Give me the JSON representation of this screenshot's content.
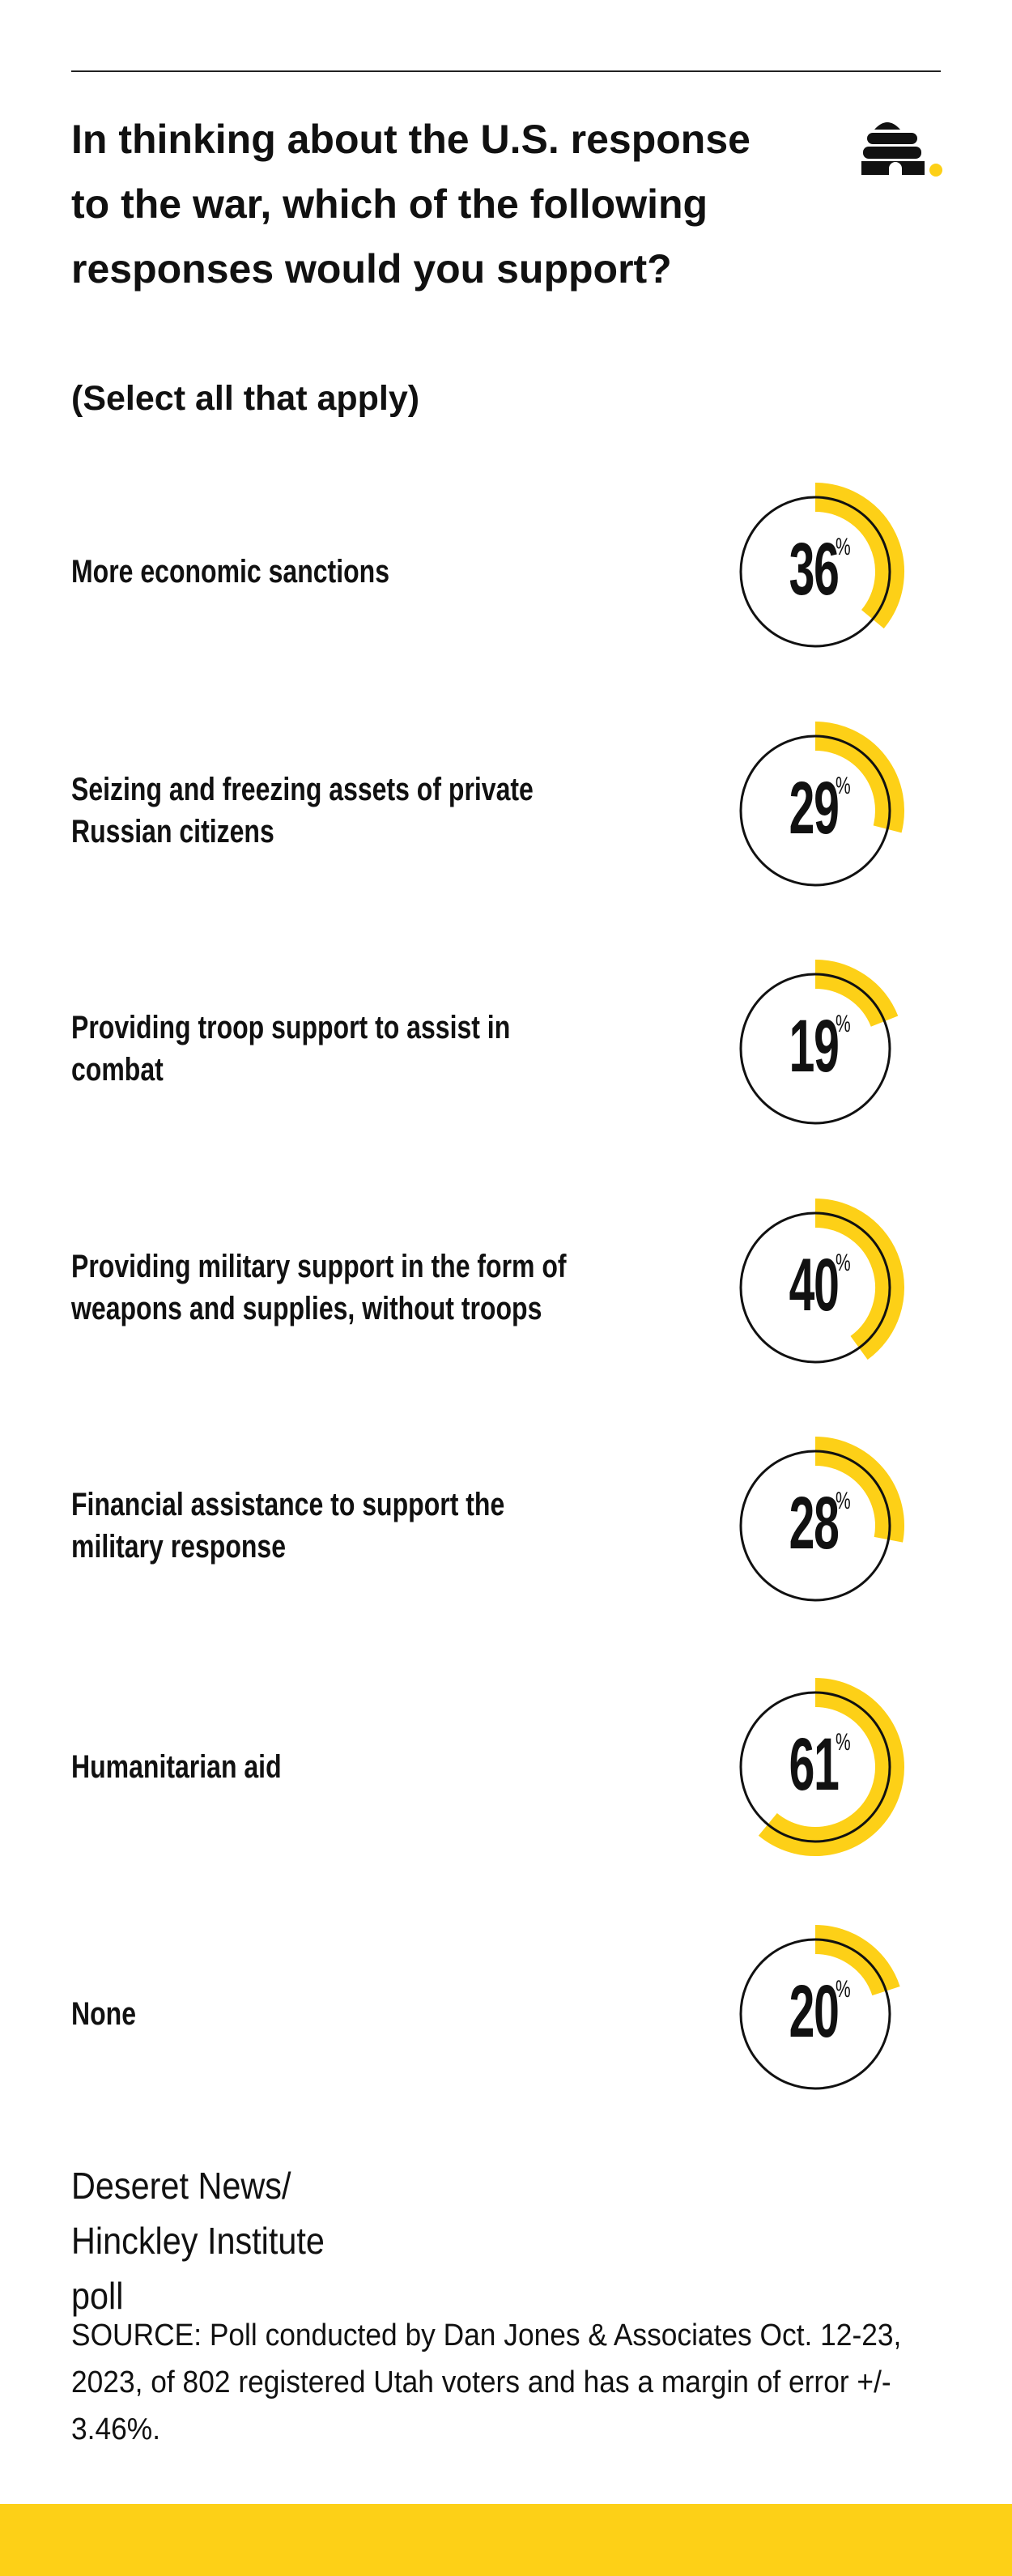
{
  "title": "In thinking about the U.S. response to the war, which of the following responses would you support?",
  "subtitle": "(Select all that apply)",
  "logo": {
    "name": "beehive-logo",
    "dot_color": "#fdd017"
  },
  "colors": {
    "accent": "#fdd017",
    "ring_outline": "#111111"
  },
  "chart_data": {
    "type": "radial-gauge",
    "unit": "%",
    "max": 100,
    "categories": [
      "More economic sanctions",
      "Seizing and freezing assets of private Russian citizens",
      "Providing troop support to assist in combat",
      "Providing military support in the form of weapons and supplies, without troops",
      "Financial assistance to support the military response",
      "Humanitarian aid",
      "None"
    ],
    "values": [
      36,
      29,
      19,
      40,
      28,
      61,
      20
    ]
  },
  "credit": "Deseret News/ Hinckley Institute poll",
  "source": "SOURCE: Poll conducted by Dan Jones & Associates Oct. 12-23, 2023, of 802 registered Utah voters and has a margin of error +/- 3.46%."
}
